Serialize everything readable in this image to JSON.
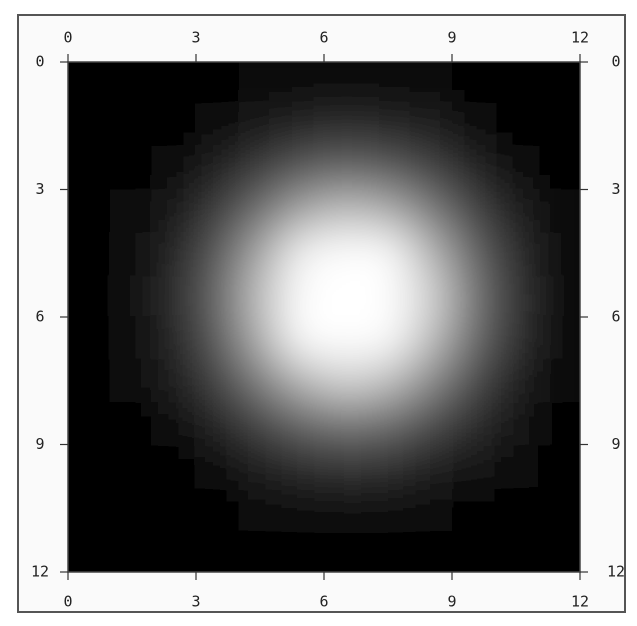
{
  "chart_data": {
    "type": "heatmap",
    "xlim": [
      0,
      12
    ],
    "ylim": [
      12,
      0
    ],
    "xticks": [
      0,
      3,
      6,
      9,
      12
    ],
    "yticks": [
      0,
      3,
      6,
      9,
      12
    ],
    "colormap": [
      "#000000",
      "#ffffff"
    ],
    "z": [
      [
        0,
        0,
        0,
        0.02,
        0.03,
        0.04,
        0.05,
        0.05,
        0.03,
        0.02,
        0.01,
        0
      ],
      [
        0,
        0.01,
        0.02,
        0.05,
        0.09,
        0.14,
        0.16,
        0.14,
        0.1,
        0.06,
        0.02,
        0.01
      ],
      [
        0,
        0.02,
        0.05,
        0.12,
        0.23,
        0.34,
        0.39,
        0.35,
        0.25,
        0.14,
        0.06,
        0.02
      ],
      [
        0.01,
        0.03,
        0.09,
        0.23,
        0.43,
        0.65,
        0.75,
        0.68,
        0.48,
        0.26,
        0.11,
        0.04
      ],
      [
        0.01,
        0.04,
        0.14,
        0.34,
        0.65,
        0.96,
        1,
        1,
        0.71,
        0.39,
        0.17,
        0.06
      ],
      [
        0.01,
        0.05,
        0.16,
        0.39,
        0.75,
        1,
        1,
        1,
        0.83,
        0.45,
        0.19,
        0.06
      ],
      [
        0.01,
        0.05,
        0.14,
        0.35,
        0.68,
        1,
        1,
        1,
        0.75,
        0.41,
        0.18,
        0.06
      ],
      [
        0.01,
        0.03,
        0.1,
        0.25,
        0.48,
        0.71,
        0.83,
        0.75,
        0.53,
        0.29,
        0.12,
        0.04
      ],
      [
        0,
        0.02,
        0.06,
        0.14,
        0.26,
        0.39,
        0.45,
        0.41,
        0.29,
        0.16,
        0.07,
        0.02
      ],
      [
        0,
        0.01,
        0.02,
        0.06,
        0.11,
        0.17,
        0.19,
        0.18,
        0.12,
        0.07,
        0.03,
        0.01
      ],
      [
        0,
        0,
        0.01,
        0.02,
        0.04,
        0.06,
        0.06,
        0.06,
        0.04,
        0.02,
        0.01,
        0
      ],
      [
        0,
        0,
        0,
        0.01,
        0.01,
        0.02,
        0.02,
        0.02,
        0.01,
        0.01,
        0,
        0
      ]
    ]
  }
}
